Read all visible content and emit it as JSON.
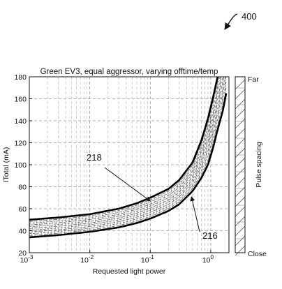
{
  "figure": {
    "reference_number": "400"
  },
  "chart_data": {
    "type": "line",
    "title": "Green EV3, equal aggressor, varying offtime/temp",
    "xlabel": "Requested light power",
    "ylabel": "ITotal (mA)",
    "x_scale": "log",
    "xlim": [
      0.001,
      2.0
    ],
    "ylim": [
      20,
      180
    ],
    "x_ticks": [
      {
        "value": 0.001,
        "base": "10",
        "exp": "-3"
      },
      {
        "value": 0.01,
        "base": "10",
        "exp": "-2"
      },
      {
        "value": 0.1,
        "base": "10",
        "exp": "-1"
      },
      {
        "value": 1,
        "base": "10",
        "exp": "0"
      }
    ],
    "y_ticks": [
      20,
      40,
      60,
      80,
      100,
      120,
      140,
      160,
      180
    ],
    "grid": true,
    "series": [
      {
        "role": "upper-bound",
        "points": [
          [
            0.001,
            50
          ],
          [
            0.003,
            52
          ],
          [
            0.01,
            55
          ],
          [
            0.03,
            60
          ],
          [
            0.06,
            65
          ],
          [
            0.1,
            70
          ],
          [
            0.2,
            78
          ],
          [
            0.3,
            86
          ],
          [
            0.5,
            102
          ],
          [
            0.7,
            122
          ],
          [
            0.9,
            142
          ],
          [
            1.1,
            162
          ],
          [
            1.3,
            180
          ]
        ]
      },
      {
        "role": "lower-bound",
        "points": [
          [
            0.001,
            34
          ],
          [
            0.003,
            36
          ],
          [
            0.01,
            39
          ],
          [
            0.03,
            43
          ],
          [
            0.06,
            47
          ],
          [
            0.1,
            51
          ],
          [
            0.2,
            58
          ],
          [
            0.3,
            64
          ],
          [
            0.5,
            76
          ],
          [
            0.7,
            88
          ],
          [
            0.9,
            100
          ],
          [
            1.1,
            116
          ],
          [
            1.3,
            132
          ],
          [
            1.6,
            150
          ],
          [
            1.8,
            165
          ]
        ]
      }
    ],
    "band_curves": 9,
    "annotations": [
      {
        "label": "218",
        "target": [
          0.1,
          67
        ]
      },
      {
        "label": "216",
        "target": [
          0.48,
          71
        ]
      }
    ],
    "pulse_spacing": {
      "label": "Pulse spacing",
      "top_label": "Far",
      "bottom_label": "Close"
    }
  }
}
